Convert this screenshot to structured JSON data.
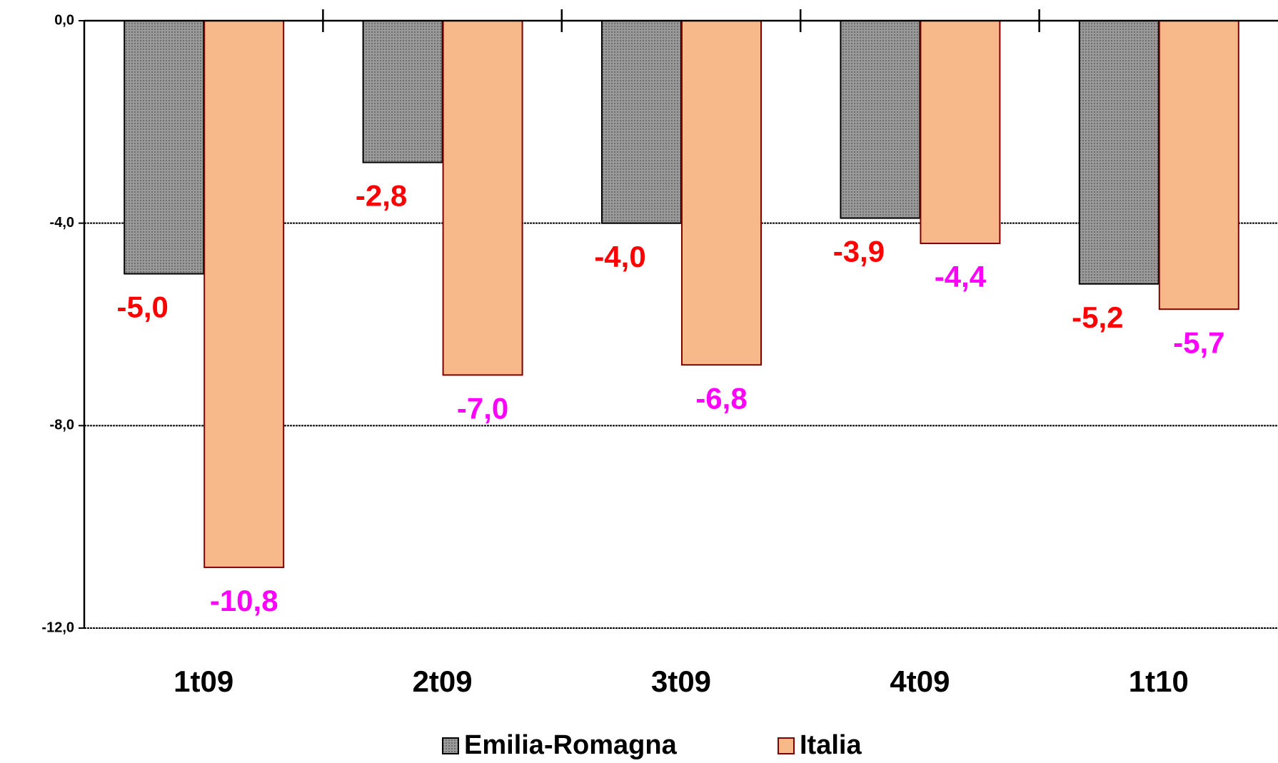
{
  "chart_data": {
    "type": "bar",
    "categories": [
      "1t09",
      "2t09",
      "3t09",
      "4t09",
      "1t10"
    ],
    "series": [
      {
        "name": "Emilia-Romagna",
        "color": "#8c8c8c",
        "border": "#000000",
        "label_color": "#ff0000",
        "values": [
          -5.0,
          -2.8,
          -4.0,
          -3.9,
          -5.2
        ],
        "value_labels": [
          "-5,0",
          "-2,8",
          "-4,0",
          "-3,9",
          "-5,2"
        ]
      },
      {
        "name": "Italia",
        "color": "#f7b98a",
        "border": "#800000",
        "label_color": "#ff00ff",
        "values": [
          -10.8,
          -7.0,
          -6.8,
          -4.4,
          -5.7
        ],
        "value_labels": [
          "-10,8",
          "-7,0",
          "-6,8",
          "-4,4",
          "-5,7"
        ]
      }
    ],
    "ylim": [
      -12,
      0
    ],
    "yticks": [
      {
        "value": 0,
        "label": "0,0"
      },
      {
        "value": -4,
        "label": "-4,0"
      },
      {
        "value": -8,
        "label": "-8,0"
      },
      {
        "value": -12,
        "label": "-12,0"
      }
    ],
    "grid": true,
    "legend": "bottom"
  }
}
